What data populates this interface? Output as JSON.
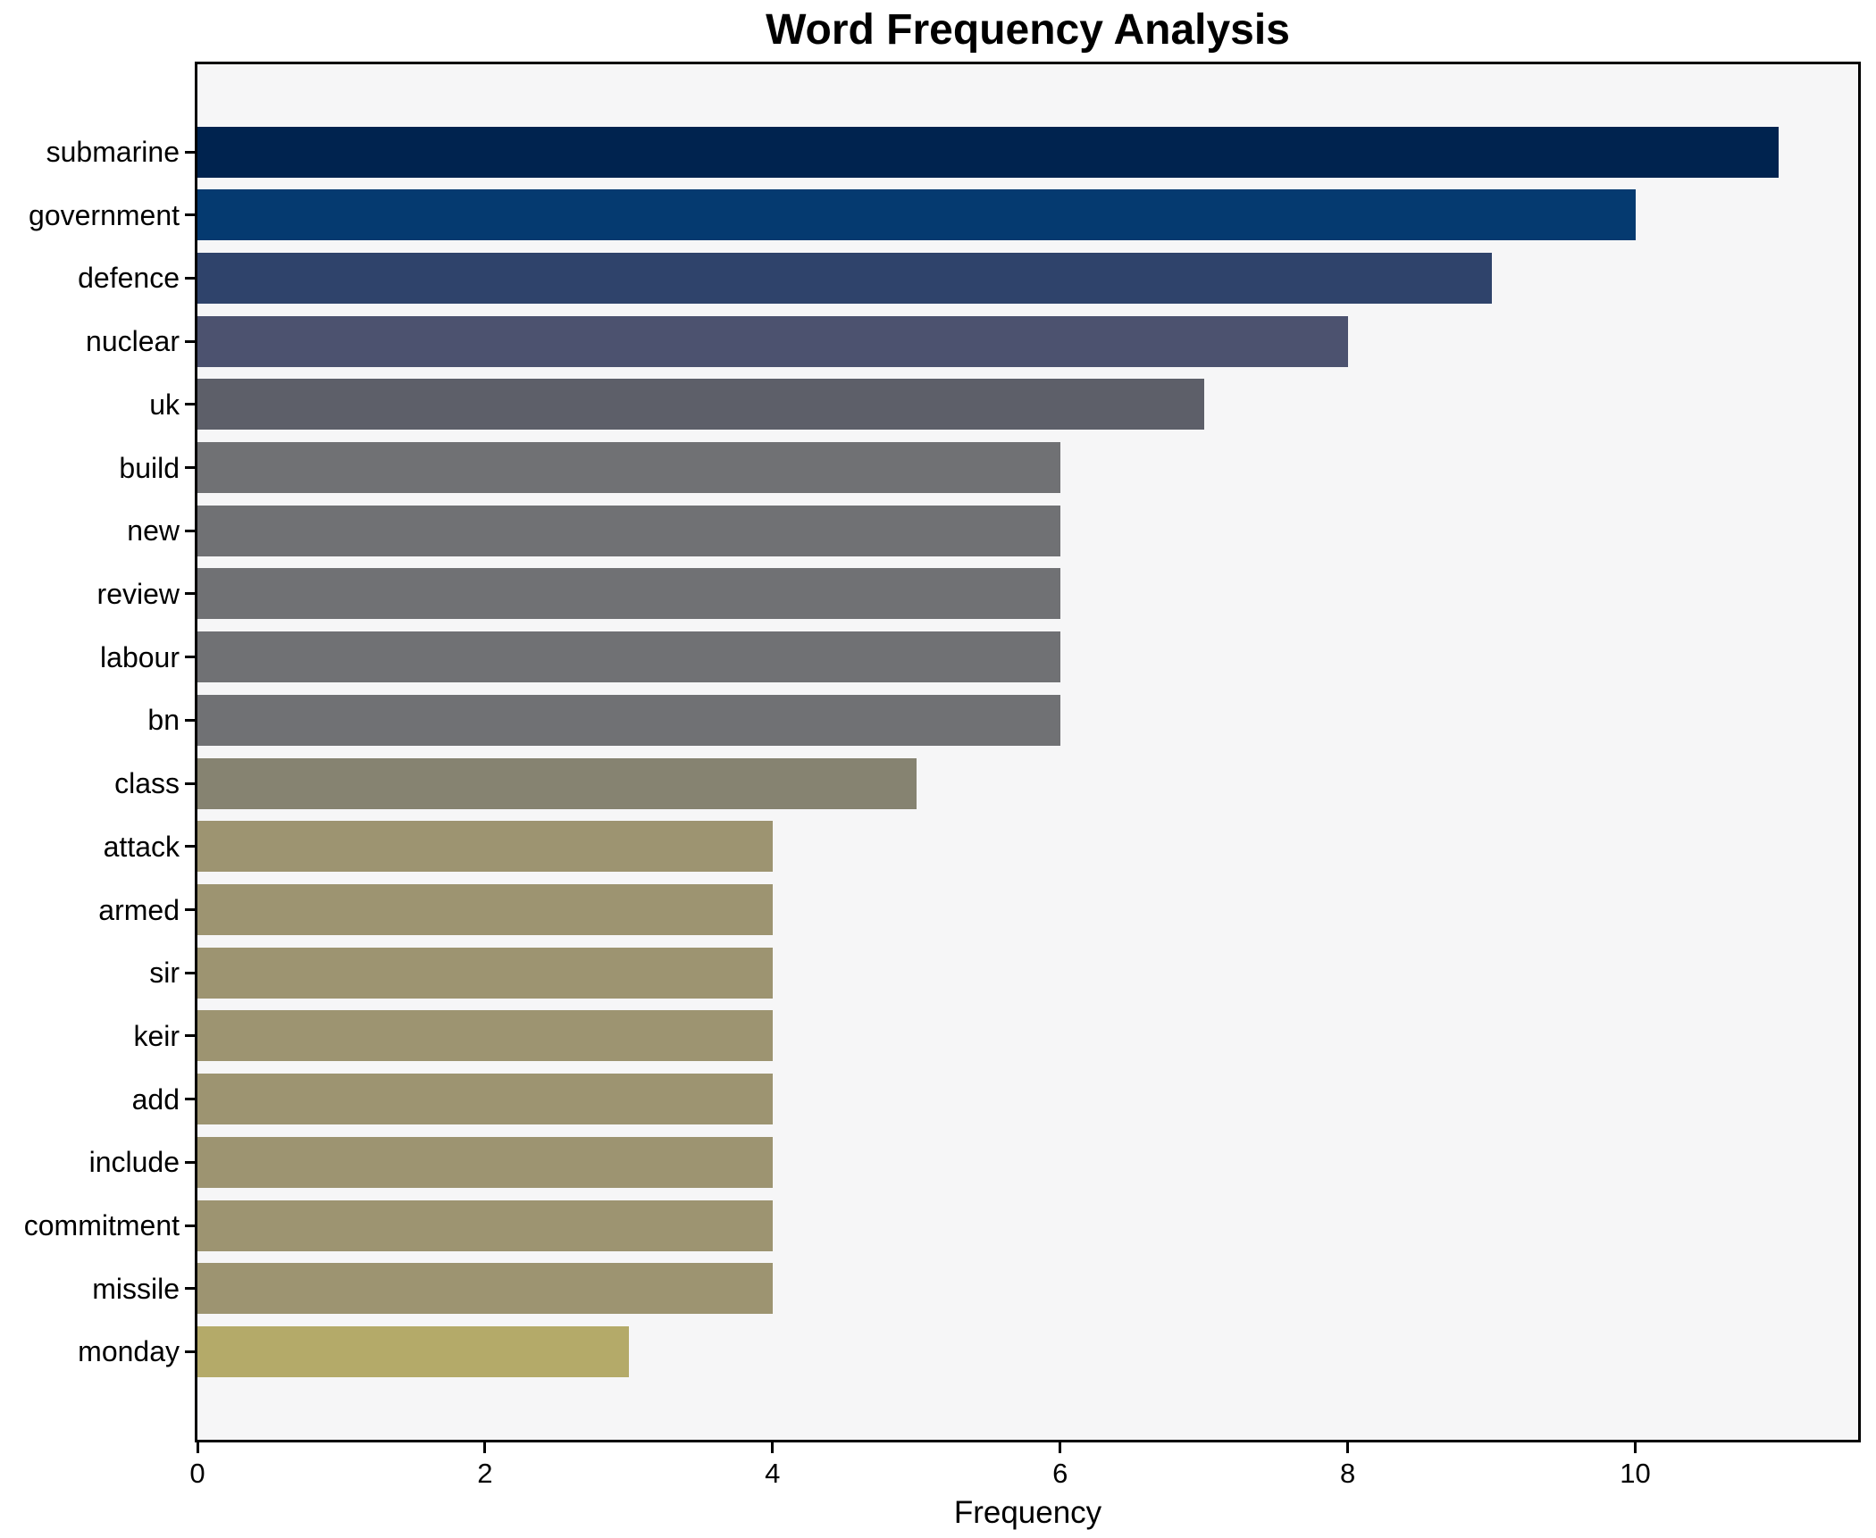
{
  "chart_data": {
    "type": "bar",
    "orientation": "horizontal",
    "title": "Word Frequency Analysis",
    "xlabel": "Frequency",
    "ylabel": "",
    "categories": [
      "submarine",
      "government",
      "defence",
      "nuclear",
      "uk",
      "build",
      "new",
      "review",
      "labour",
      "bn",
      "class",
      "attack",
      "armed",
      "sir",
      "keir",
      "add",
      "include",
      "commitment",
      "missile",
      "monday"
    ],
    "values": [
      11,
      10,
      9,
      8,
      7,
      6,
      6,
      6,
      6,
      6,
      5,
      4,
      4,
      4,
      4,
      4,
      4,
      4,
      4,
      3
    ],
    "bar_colors": [
      "#00234f",
      "#053a70",
      "#2f436b",
      "#4c526f",
      "#5d5f69",
      "#707174",
      "#707174",
      "#707174",
      "#707174",
      "#707174",
      "#868371",
      "#9d9471",
      "#9d9471",
      "#9d9471",
      "#9d9471",
      "#9d9471",
      "#9d9471",
      "#9d9471",
      "#9d9471",
      "#b4aa69"
    ],
    "x_ticks": [
      0,
      2,
      4,
      6,
      8,
      10
    ],
    "xlim": [
      0,
      11.55
    ],
    "grid": false,
    "legend_position": "none",
    "colormap": "cividis",
    "figure_bg": "#ffffff",
    "plot_bg": "#f6f6f7",
    "spine_color": "#000000",
    "text_color": "#000000"
  }
}
